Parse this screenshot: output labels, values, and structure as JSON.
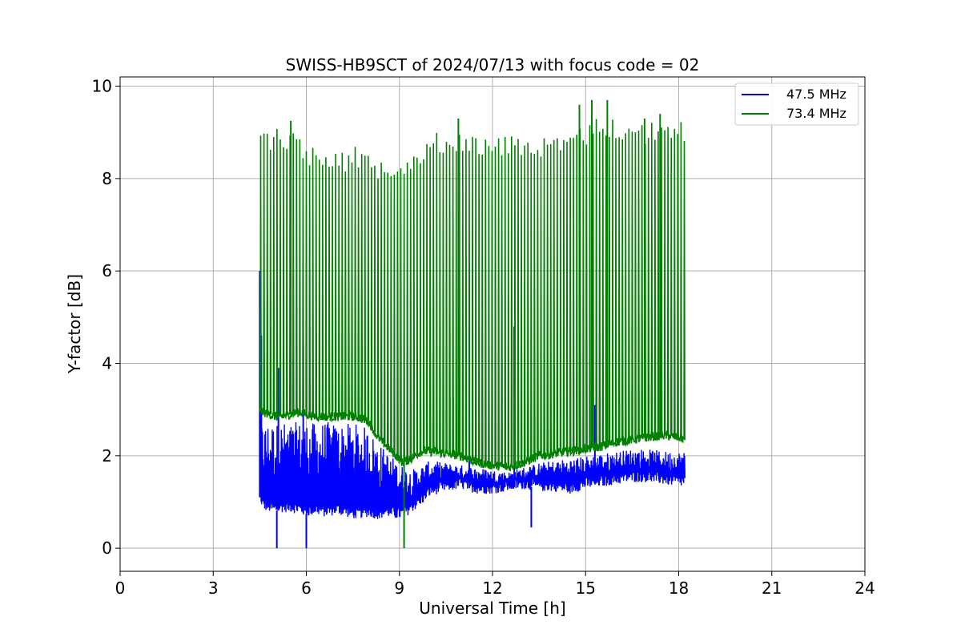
{
  "chart_data": {
    "type": "line",
    "title": "SWISS-HB9SCT of 2024/07/13 with focus code = 02",
    "xlabel": "Universal Time [h]",
    "ylabel": "Y-factor [dB]",
    "xlim": [
      0,
      24
    ],
    "ylim": [
      -0.5,
      10.2
    ],
    "xticks": [
      0,
      3,
      6,
      9,
      12,
      15,
      18,
      21,
      24
    ],
    "yticks": [
      0,
      2,
      4,
      6,
      8,
      10
    ],
    "grid": true,
    "legend_position": "top-right",
    "series": [
      {
        "name": "47.5 MHz",
        "color": "#0000ff",
        "x": [
          4.5,
          4.6,
          4.8,
          5.0,
          5.2,
          5.5,
          5.8,
          6.0,
          6.3,
          6.6,
          7.0,
          7.3,
          7.6,
          8.0,
          8.3,
          8.6,
          8.9,
          9.1,
          9.4,
          9.7,
          10.0,
          10.5,
          11.0,
          11.5,
          12.0,
          12.5,
          13.0,
          13.5,
          14.0,
          14.5,
          15.0,
          15.5,
          16.0,
          16.5,
          17.0,
          17.5,
          18.0,
          18.2
        ],
        "values": [
          1.1,
          0.9,
          0.85,
          0.8,
          0.85,
          0.85,
          0.8,
          0.75,
          0.8,
          0.75,
          0.8,
          0.75,
          0.7,
          0.75,
          0.7,
          0.75,
          0.7,
          0.7,
          0.85,
          1.0,
          1.2,
          1.3,
          1.35,
          1.25,
          1.25,
          1.3,
          1.35,
          1.3,
          1.3,
          1.25,
          1.35,
          1.4,
          1.45,
          1.5,
          1.5,
          1.45,
          1.4,
          1.4
        ],
        "upper": [
          2.8,
          2.7,
          2.75,
          2.7,
          2.75,
          2.7,
          2.75,
          2.75,
          2.7,
          2.75,
          2.7,
          2.7,
          2.7,
          2.6,
          2.3,
          2.1,
          1.9,
          1.8,
          1.7,
          1.8,
          1.9,
          1.85,
          1.8,
          1.75,
          1.7,
          1.65,
          1.75,
          1.85,
          1.9,
          1.95,
          2.0,
          2.05,
          2.1,
          2.15,
          2.15,
          2.1,
          2.1,
          2.1
        ],
        "spikes": [
          {
            "x": 4.5,
            "y": 6.0
          },
          {
            "x": 4.55,
            "y": 4.6
          },
          {
            "x": 5.05,
            "y": 0.0
          },
          {
            "x": 5.1,
            "y": 3.9
          },
          {
            "x": 5.9,
            "y": 4.4
          },
          {
            "x": 6.0,
            "y": 0.0
          },
          {
            "x": 11.25,
            "y": 4.9
          },
          {
            "x": 12.7,
            "y": 4.8
          },
          {
            "x": 13.25,
            "y": 0.45
          },
          {
            "x": 15.3,
            "y": 3.1
          }
        ]
      },
      {
        "name": "73.4 MHz",
        "color": "#008000",
        "x": [
          4.5,
          4.6,
          4.8,
          5.0,
          5.2,
          5.5,
          5.8,
          6.0,
          6.3,
          6.6,
          7.0,
          7.3,
          7.6,
          8.0,
          8.3,
          8.6,
          8.9,
          9.1,
          9.4,
          9.7,
          10.0,
          10.5,
          11.0,
          11.5,
          12.0,
          12.5,
          13.0,
          13.5,
          14.0,
          14.5,
          15.0,
          15.5,
          16.0,
          16.5,
          17.0,
          17.5,
          18.0,
          18.2
        ],
        "values": [
          3.0,
          2.95,
          2.9,
          2.85,
          2.85,
          2.9,
          2.95,
          2.9,
          2.85,
          2.85,
          2.85,
          2.85,
          2.85,
          2.75,
          2.4,
          2.2,
          2.0,
          1.85,
          1.95,
          2.1,
          2.1,
          2.05,
          2.0,
          1.85,
          1.8,
          1.75,
          1.85,
          2.0,
          2.05,
          2.1,
          2.15,
          2.2,
          2.3,
          2.35,
          2.4,
          2.45,
          2.4,
          2.35
        ],
        "peaks": [
          9.2,
          9.1,
          9.1,
          9.15,
          9.1,
          9.1,
          9.1,
          8.7,
          8.7,
          8.7,
          8.8,
          8.6,
          8.7,
          8.6,
          8.5,
          8.55,
          8.5,
          8.6,
          8.6,
          8.8,
          9.0,
          9.0,
          9.1,
          8.9,
          8.9,
          9.0,
          9.0,
          8.9,
          8.9,
          9.0,
          9.2,
          9.4,
          9.3,
          9.3,
          9.2,
          9.3,
          9.3,
          9.2
        ],
        "spikes": [
          {
            "x": 9.15,
            "y": 0.0
          },
          {
            "x": 5.5,
            "y": 9.25
          },
          {
            "x": 10.9,
            "y": 9.3
          },
          {
            "x": 14.8,
            "y": 9.6
          },
          {
            "x": 15.2,
            "y": 9.7
          },
          {
            "x": 15.7,
            "y": 9.7
          },
          {
            "x": 16.9,
            "y": 9.3
          },
          {
            "x": 17.4,
            "y": 9.4
          }
        ]
      }
    ]
  }
}
